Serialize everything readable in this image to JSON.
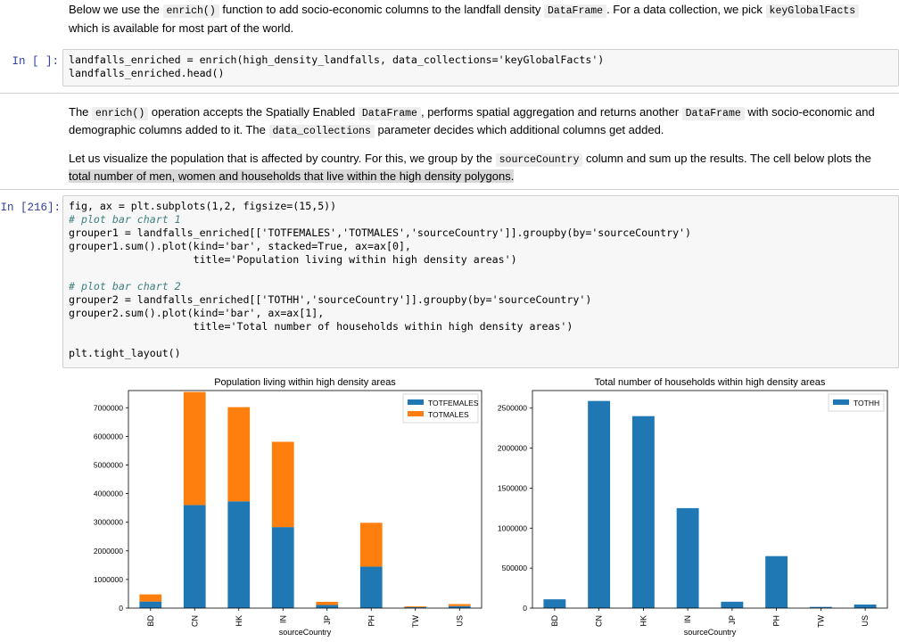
{
  "md1": {
    "p1": "Below we use the ",
    "c1": "enrich()",
    "p2": " function to add socio-economic columns to the landfall density ",
    "c2": "DataFrame",
    "p3": ". For a data collection, we pick ",
    "c3": "keyGlobalFacts",
    "p4": "which is available for most part of the world."
  },
  "cell1": {
    "prompt": "In [ ]:",
    "line1": "landfalls_enriched = enrich(high_density_landfalls, data_collections='keyGlobalFacts')",
    "line2": "landfalls_enriched.head()"
  },
  "md2": {
    "a1": "The ",
    "a2": "enrich()",
    "a3": " operation accepts the Spatially Enabled ",
    "a4": "DataFrame",
    "a5": ", performs spatial aggregation and returns another ",
    "a6": "DataFrame",
    "a7": " with socio-economic and",
    "a8": "demographic columns added to it. The ",
    "a9": "data_collections",
    "a10": " parameter decides which additional columns get added.",
    "b1": "Let us visualize the population that is affected by country. For this, we group by the ",
    "b2": "sourceCountry",
    "b3": " column and sum up the results. The cell below plots the",
    "b4": "total number of men, women and households that live within the high density polygons."
  },
  "cell2": {
    "prompt": "In [216]:",
    "l1": "fig, ax = plt.subplots(1,2, figsize=(15,5))",
    "l2": "# plot bar chart 1",
    "l3": "grouper1 = landfalls_enriched[['TOTFEMALES','TOTMALES','sourceCountry']].groupby(by='sourceCountry')",
    "l4": "grouper1.sum().plot(kind='bar', stacked=True, ax=ax[0],",
    "l5": "                    title='Population living within high density areas')",
    "l6": "# plot bar chart 2",
    "l7": "grouper2 = landfalls_enriched[['TOTHH','sourceCountry']].groupby(by='sourceCountry')",
    "l8": "grouper2.sum().plot(kind='bar', ax=ax[1],",
    "l9": "                    title='Total number of households within high density areas')",
    "l10": "plt.tight_layout()"
  },
  "colors": {
    "blue": "#1f77b4",
    "orange": "#ff7f0e"
  },
  "chart_data": [
    {
      "type": "bar",
      "stacked": true,
      "title": "Population living within high density areas",
      "xlabel": "sourceCountry",
      "ylabel": "",
      "categories": [
        "BD",
        "CN",
        "HK",
        "IN",
        "JP",
        "PH",
        "TW",
        "US"
      ],
      "series": [
        {
          "name": "TOTFEMALES",
          "values": [
            230000,
            3600000,
            3730000,
            2830000,
            110000,
            1450000,
            30000,
            70000
          ]
        },
        {
          "name": "TOTMALES",
          "values": [
            250000,
            3950000,
            3290000,
            2980000,
            110000,
            1530000,
            30000,
            70000
          ]
        }
      ],
      "ylim": [
        0,
        7600000
      ],
      "yticks": [
        0,
        1000000,
        2000000,
        3000000,
        4000000,
        5000000,
        6000000,
        7000000
      ],
      "ytick_labels": [
        "0",
        "1000000",
        "2000000",
        "3000000",
        "4000000",
        "5000000",
        "6000000",
        "7000000"
      ],
      "legend": "top-right"
    },
    {
      "type": "bar",
      "title": "Total number of households within high density areas",
      "xlabel": "sourceCountry",
      "ylabel": "",
      "categories": [
        "BD",
        "CN",
        "HK",
        "IN",
        "JP",
        "PH",
        "TW",
        "US"
      ],
      "series": [
        {
          "name": "TOTHH",
          "values": [
            110000,
            2590000,
            2400000,
            1250000,
            80000,
            650000,
            15000,
            45000
          ]
        }
      ],
      "ylim": [
        0,
        2720000
      ],
      "yticks": [
        0,
        500000,
        1000000,
        1500000,
        2000000,
        2500000
      ],
      "ytick_labels": [
        "0",
        "500000",
        "1000000",
        "1500000",
        "2000000",
        "2500000"
      ],
      "legend": "top-right"
    }
  ]
}
